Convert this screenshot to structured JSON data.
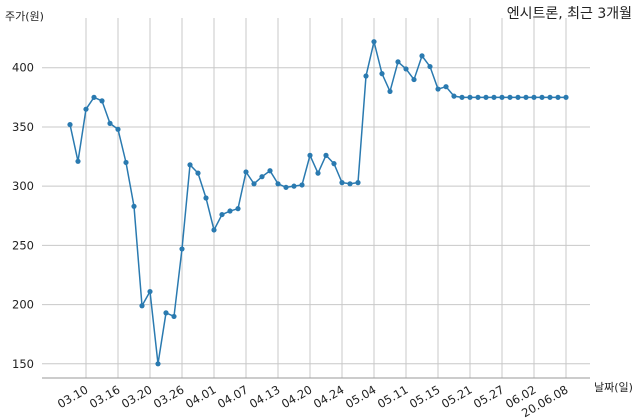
{
  "chart_data": {
    "type": "line",
    "title": "엔시트론, 최근 3개월",
    "xlabel": "날짜(일)",
    "ylabel": "주가(원)",
    "ylim": [
      138,
      442
    ],
    "yticks": [
      150,
      200,
      250,
      300,
      350,
      400
    ],
    "grid": true,
    "line_color": "#2a7ab0",
    "x_tick_labels": [
      "03.10",
      "03.16",
      "03.20",
      "03.26",
      "04.01",
      "04.07",
      "04.13",
      "04.20",
      "04.24",
      "05.04",
      "05.11",
      "05.15",
      "05.21",
      "05.27",
      "06.02",
      "20.06.08"
    ],
    "x_tick_positions": [
      2,
      6,
      10,
      14,
      18,
      22,
      26,
      30,
      34,
      38,
      42,
      46,
      50,
      54,
      58,
      62
    ],
    "series": [
      {
        "values": [
          352,
          321,
          365,
          375,
          372,
          353,
          348,
          320,
          283,
          199,
          211,
          150,
          193,
          190,
          247,
          318,
          311,
          290,
          263,
          276,
          279,
          281,
          312,
          302,
          308,
          313,
          302,
          299,
          300,
          301,
          326,
          311,
          326,
          319,
          303,
          302,
          303,
          393,
          422,
          395,
          380,
          405,
          399,
          390,
          410,
          401,
          382,
          384,
          376,
          375,
          375,
          375,
          375,
          375,
          375,
          375,
          375,
          375,
          375,
          375,
          375,
          375,
          375
        ]
      }
    ]
  }
}
